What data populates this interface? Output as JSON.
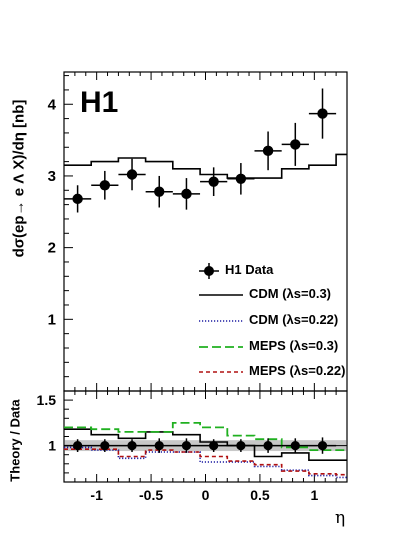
{
  "figure": {
    "brand": "H1",
    "xlabel": "η",
    "ylabel_top": "dσ(ep→ e Λ X)/dη [nb]",
    "ylabel_bottom": "Theory / Data"
  },
  "legend": [
    {
      "label": "H1 Data",
      "style": "marker",
      "color": "#000000"
    },
    {
      "label": "CDM (λs=0.3)",
      "style": "solid",
      "color": "#000000"
    },
    {
      "label": "CDM (λs=0.22)",
      "style": "dotted",
      "color": "#1a1aa0"
    },
    {
      "label": "MEPS (λs=0.3)",
      "style": "dashed",
      "color": "#20b020"
    },
    {
      "label": "MEPS (λs=0.22)",
      "style": "dashed-fine",
      "color": "#b01010"
    }
  ],
  "chart_data": [
    {
      "type": "scatter",
      "title": "",
      "xlabel": "η",
      "ylabel": "dσ(ep→ e Λ X)/dη [nb]",
      "xlim": [
        -1.3,
        1.3
      ],
      "ylim": [
        0.0,
        4.45
      ],
      "xticks": [
        -1,
        -0.5,
        0,
        0.5,
        1
      ],
      "yticks": [
        1,
        2,
        3,
        4
      ],
      "bin_edges": [
        -1.3,
        -1.05,
        -0.8,
        -0.55,
        -0.3,
        -0.05,
        0.2,
        0.45,
        0.7,
        0.95,
        1.2,
        1.3
      ],
      "data": {
        "name": "H1 Data",
        "x": [
          -1.175,
          -0.925,
          -0.675,
          -0.425,
          -0.175,
          0.075,
          0.325,
          0.575,
          0.825,
          1.075
        ],
        "x_err": [
          0.125,
          0.125,
          0.125,
          0.125,
          0.125,
          0.125,
          0.125,
          0.125,
          0.125,
          0.125
        ],
        "y": [
          2.68,
          2.87,
          3.02,
          2.78,
          2.75,
          2.92,
          2.96,
          3.35,
          3.44,
          3.87
        ],
        "y_err": [
          0.19,
          0.2,
          0.22,
          0.22,
          0.22,
          0.2,
          0.22,
          0.27,
          0.3,
          0.35
        ]
      },
      "series": [
        {
          "name": "CDM (λs=0.3)",
          "style": "solid",
          "values": [
            3.15,
            3.2,
            3.25,
            3.2,
            3.1,
            3.02,
            2.97,
            2.97,
            3.1,
            3.15,
            3.3
          ]
        }
      ]
    },
    {
      "type": "line",
      "title": "",
      "xlabel": "η",
      "ylabel": "Theory / Data",
      "xlim": [
        -1.3,
        1.3
      ],
      "ylim": [
        0.6,
        1.6
      ],
      "xticks": [
        -1,
        -0.5,
        0,
        0.5,
        1
      ],
      "xtick_labels": [
        "-1",
        "-0.5",
        "0",
        "0.5",
        "1"
      ],
      "yticks": [
        1,
        1.5
      ],
      "band": {
        "center": 1.0,
        "half_width": 0.06,
        "color": "#c8c8c8"
      },
      "ratio_points": {
        "x": [
          -1.175,
          -0.925,
          -0.675,
          -0.425,
          -0.175,
          0.075,
          0.325,
          0.575,
          0.825,
          1.075
        ],
        "y": [
          1.0,
          1.0,
          1.0,
          1.0,
          1.0,
          1.0,
          1.0,
          1.0,
          1.0,
          1.0
        ],
        "y_err": [
          0.07,
          0.07,
          0.07,
          0.08,
          0.08,
          0.07,
          0.07,
          0.08,
          0.08,
          0.09
        ]
      },
      "series": [
        {
          "name": "CDM (λs=0.3)",
          "style": "solid",
          "values": [
            1.18,
            1.12,
            1.08,
            1.15,
            1.12,
            1.04,
            1.0,
            0.88,
            0.92,
            0.84,
            0.84
          ]
        },
        {
          "name": "CDM (λs=0.22)",
          "style": "dotted",
          "values": [
            0.98,
            0.95,
            0.86,
            0.93,
            0.93,
            0.82,
            0.82,
            0.77,
            0.73,
            0.67,
            0.65
          ]
        },
        {
          "name": "MEPS (λs=0.3)",
          "style": "dashed",
          "values": [
            1.2,
            1.18,
            1.15,
            1.15,
            1.25,
            1.2,
            1.11,
            1.07,
            0.98,
            0.95,
            0.95
          ]
        },
        {
          "name": "MEPS (λs=0.22)",
          "style": "dashed-fine",
          "values": [
            0.96,
            0.96,
            0.88,
            0.95,
            0.93,
            0.88,
            0.83,
            0.79,
            0.72,
            0.69,
            0.68
          ]
        }
      ]
    }
  ]
}
